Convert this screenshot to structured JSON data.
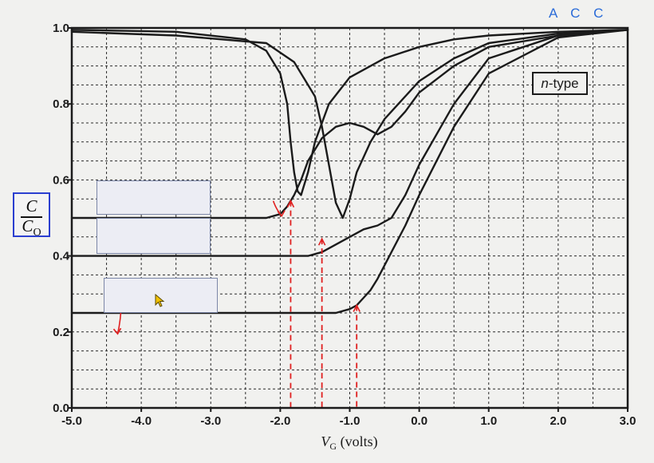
{
  "chart_data": {
    "type": "line",
    "xlabel_main": "V",
    "xlabel_sub": "G",
    "xlabel_unit": " (volts)",
    "ylabel_num": "C",
    "ylabel_den_main": "C",
    "ylabel_den_sub": "O",
    "legend_label": "n-type",
    "legend_italic": "n",
    "legend_rest": "-type",
    "annotation": "A C C",
    "xlim": [
      -5.0,
      3.0
    ],
    "ylim": [
      0.0,
      1.0
    ],
    "xticks": [
      -5.0,
      -4.0,
      -3.0,
      -2.0,
      -1.0,
      0.0,
      1.0,
      2.0,
      3.0
    ],
    "xtick_labels": [
      "-5.0",
      "-4.0",
      "-3.0",
      "-2.0",
      "-1.0",
      "0.0",
      "1.0",
      "2.0",
      "3.0"
    ],
    "yticks": [
      0.0,
      0.2,
      0.4,
      0.6,
      0.8,
      1.0
    ],
    "ytick_labels": [
      "0.0",
      "0.2",
      "0.4",
      "0.6",
      "0.8",
      "1.0"
    ],
    "grid": true,
    "grid_minor_step": 0.5,
    "series": [
      {
        "x": [
          -5.0,
          -3.5,
          -2.5,
          -2.2,
          -2.0,
          -1.9,
          -1.85,
          -1.8,
          -1.75,
          -1.7,
          -1.6,
          -1.5,
          -1.3,
          -1.0,
          -0.5,
          0.0,
          0.5,
          1.0,
          2.0,
          3.0
        ],
        "y": [
          0.995,
          0.99,
          0.97,
          0.94,
          0.88,
          0.8,
          0.7,
          0.62,
          0.57,
          0.56,
          0.62,
          0.7,
          0.8,
          0.87,
          0.92,
          0.95,
          0.97,
          0.98,
          0.99,
          0.995
        ]
      },
      {
        "x": [
          -5.0,
          -3.5,
          -2.2,
          -1.8,
          -1.5,
          -1.4,
          -1.3,
          -1.2,
          -1.1,
          -1.0,
          -0.9,
          -0.7,
          -0.5,
          0.0,
          0.5,
          1.0,
          2.0,
          3.0
        ],
        "y": [
          0.99,
          0.98,
          0.96,
          0.91,
          0.82,
          0.74,
          0.64,
          0.54,
          0.5,
          0.55,
          0.62,
          0.7,
          0.76,
          0.86,
          0.92,
          0.96,
          0.985,
          0.995
        ]
      },
      {
        "x": [
          -5.0,
          -3.0,
          -2.5,
          -2.2,
          -2.0,
          -1.9,
          -1.8,
          -1.7,
          -1.6,
          -1.4,
          -1.2,
          -1.0,
          -0.8,
          -0.6,
          -0.4,
          -0.2,
          0.0,
          0.5,
          1.0,
          2.0,
          3.0
        ],
        "y": [
          0.5,
          0.5,
          0.5,
          0.5,
          0.51,
          0.53,
          0.56,
          0.6,
          0.65,
          0.71,
          0.74,
          0.75,
          0.74,
          0.72,
          0.74,
          0.78,
          0.83,
          0.9,
          0.95,
          0.98,
          0.995
        ]
      },
      {
        "x": [
          -5.0,
          -2.0,
          -1.6,
          -1.4,
          -1.3,
          -1.2,
          -1.0,
          -0.8,
          -0.6,
          -0.4,
          -0.2,
          0.0,
          0.5,
          1.0,
          2.0,
          3.0
        ],
        "y": [
          0.4,
          0.4,
          0.4,
          0.41,
          0.42,
          0.43,
          0.45,
          0.47,
          0.48,
          0.5,
          0.56,
          0.64,
          0.8,
          0.92,
          0.98,
          0.995
        ]
      },
      {
        "x": [
          -5.0,
          -1.5,
          -1.2,
          -1.0,
          -0.9,
          -0.8,
          -0.7,
          -0.6,
          -0.4,
          -0.2,
          0.0,
          0.5,
          1.0,
          2.0,
          3.0
        ],
        "y": [
          0.25,
          0.25,
          0.25,
          0.26,
          0.27,
          0.29,
          0.31,
          0.34,
          0.41,
          0.48,
          0.56,
          0.74,
          0.88,
          0.975,
          0.995
        ]
      }
    ],
    "red_arrows": [
      {
        "x": [
          -2.1,
          -1.98
        ],
        "y": [
          0.545,
          0.505
        ]
      },
      {
        "x": [
          -4.3,
          -4.34
        ],
        "y": [
          0.315,
          0.195
        ]
      }
    ],
    "red_dashed_markers": [
      {
        "x": -1.85,
        "y_top": 0.545
      },
      {
        "x": -1.4,
        "y_top": 0.445
      },
      {
        "x": -0.9,
        "y_top": 0.27
      }
    ]
  }
}
